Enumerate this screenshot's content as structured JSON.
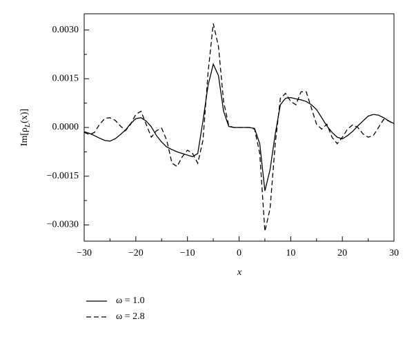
{
  "chart_data": {
    "type": "line",
    "xlabel": "x",
    "ylabel": [
      "Im[ρ",
      "L",
      "(x)]"
    ],
    "x": [
      -30,
      -29,
      -28,
      -27,
      -26,
      -25,
      -24,
      -23,
      -22,
      -21,
      -20,
      -19,
      -18,
      -17,
      -16,
      -15,
      -14,
      -13,
      -12,
      -11,
      -10,
      -9,
      -8,
      -7,
      -6,
      -5,
      -4,
      -3,
      -2,
      -1,
      0,
      1,
      2,
      3,
      4,
      5,
      6,
      7,
      8,
      9,
      10,
      11,
      12,
      13,
      14,
      15,
      16,
      17,
      18,
      19,
      20,
      21,
      22,
      23,
      24,
      25,
      26,
      27,
      28,
      29,
      30
    ],
    "series": [
      {
        "name": "ω = 1.0",
        "color": "#000000",
        "dash": "solid",
        "values": [
          -0.00013,
          -0.00018,
          -0.00025,
          -0.00033,
          -0.0004,
          -0.00042,
          -0.00035,
          -0.00022,
          -8e-05,
          0.00012,
          0.00027,
          0.0003,
          0.0002,
          2e-05,
          -0.00025,
          -0.00045,
          -0.0006,
          -0.00068,
          -0.00075,
          -0.0008,
          -0.00085,
          -0.0009,
          -0.0008,
          0.0002,
          0.0013,
          0.00195,
          0.0016,
          0.0005,
          3e-05,
          0,
          0,
          0,
          0,
          -3e-05,
          -0.0005,
          -0.00195,
          -0.0013,
          -0.0002,
          0.0007,
          0.0009,
          0.00092,
          0.00088,
          0.00085,
          0.0008,
          0.0007,
          0.00055,
          0.0003,
          5e-05,
          -0.00015,
          -0.0003,
          -0.00035,
          -0.00025,
          -0.00012,
          5e-05,
          0.0002,
          0.00035,
          0.0004,
          0.00038,
          0.0003,
          0.0002,
          0.00012
        ]
      },
      {
        "name": "ω = 2.8",
        "color": "#000000",
        "dash": "dashed",
        "values": [
          -0.00015,
          -0.00022,
          -0.00015,
          0.0001,
          0.00028,
          0.0003,
          0.00022,
          5e-05,
          -0.0001,
          0.0001,
          0.0004,
          0.0005,
          0.0001,
          -0.0003,
          -0.0001,
          -2e-05,
          -0.0004,
          -0.0011,
          -0.0012,
          -0.0009,
          -0.0007,
          -0.0008,
          -0.0011,
          -0.0004,
          0.0017,
          0.0032,
          0.0025,
          0.0008,
          5e-05,
          0,
          0,
          0,
          0,
          -5e-05,
          -0.0008,
          -0.0032,
          -0.0025,
          -0.0005,
          0.0009,
          0.00105,
          0.0008,
          0.0007,
          0.0011,
          0.0011,
          0.0006,
          0.0001,
          -5e-05,
          0.0001,
          -0.0003,
          -0.0005,
          -0.0003,
          -5e-05,
          8e-05,
          0,
          -0.0002,
          -0.0003,
          -0.00025,
          0,
          0.00025,
          0.0002,
          0.0001
        ]
      }
    ],
    "xlim": [
      -30,
      30
    ],
    "xticks": [
      {
        "value": -30,
        "label": "−30"
      },
      {
        "value": -20,
        "label": "−20"
      },
      {
        "value": -10,
        "label": "−10"
      },
      0,
      10,
      20,
      30
    ],
    "ylim": [
      -0.0035,
      0.0035
    ],
    "yticks": [
      {
        "value": -0.003,
        "label": "−0.0030"
      },
      {
        "value": -0.0015,
        "label": "−0.0015"
      },
      {
        "value": 0,
        "label": "0.0000"
      },
      {
        "value": 0.0015,
        "label": "0.0015"
      },
      {
        "value": 0.003,
        "label": "0.0030"
      }
    ],
    "legend": "bottom-left"
  }
}
